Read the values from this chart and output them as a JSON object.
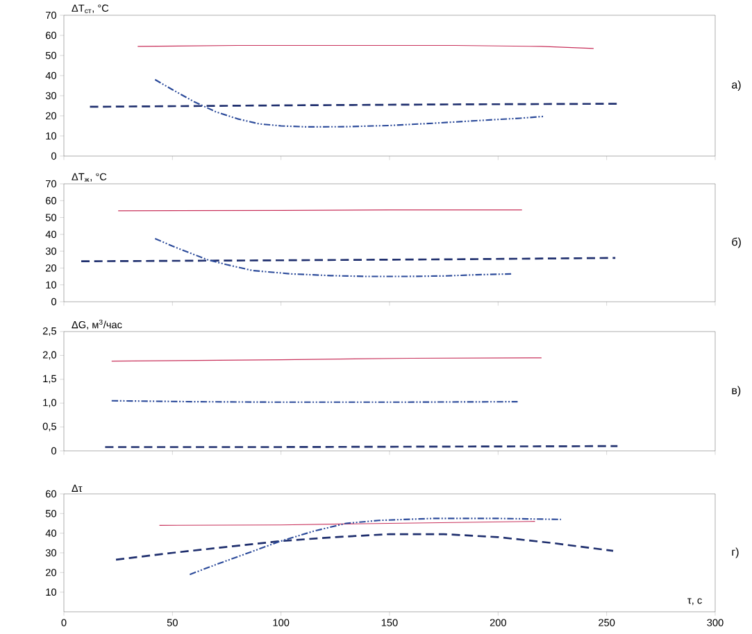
{
  "chart_data": [
    {
      "type": "line",
      "ylabel": "ΔT$_{ст}$, °C",
      "annotations": [
        "а)"
      ],
      "xlim": [
        0,
        300
      ],
      "xticks": [
        0,
        50,
        100,
        150,
        200,
        250,
        300
      ],
      "ylim": [
        0,
        70
      ],
      "yticks": [
        0,
        10,
        20,
        30,
        40,
        50,
        60,
        70
      ],
      "tick_labels": "y",
      "series": [
        {
          "color": "#c8305a",
          "line_style": "solid",
          "x": [
            34,
            80,
            130,
            180,
            220,
            244
          ],
          "values": [
            54.5,
            55,
            55,
            55,
            54.5,
            53.5
          ]
        },
        {
          "color": "#1f2f6e",
          "line_style": "dashed",
          "x": [
            12,
            100,
            180,
            255
          ],
          "values": [
            24.5,
            25.2,
            25.7,
            26
          ]
        },
        {
          "color": "#2b4a9a",
          "line_style": "dashdotdotted",
          "x": [
            42,
            50,
            60,
            70,
            80,
            90,
            100,
            112,
            130,
            150,
            170,
            190,
            210,
            221
          ],
          "values": [
            38,
            33,
            27,
            22,
            18.5,
            16,
            15,
            14.5,
            14.6,
            15.2,
            16.3,
            17.6,
            18.8,
            19.7
          ]
        }
      ]
    },
    {
      "type": "line",
      "ylabel": "ΔT$_{ж}$, °C",
      "annotations": [
        "б)"
      ],
      "xlim": [
        0,
        300
      ],
      "xticks": [
        0,
        50,
        100,
        150,
        200,
        250,
        300
      ],
      "ylim": [
        0,
        70
      ],
      "yticks": [
        0,
        10,
        20,
        30,
        40,
        50,
        60,
        70
      ],
      "tick_labels": "y",
      "series": [
        {
          "color": "#c8305a",
          "line_style": "solid",
          "x": [
            25,
            100,
            150,
            211
          ],
          "values": [
            54,
            54.2,
            54.5,
            54.5
          ]
        },
        {
          "color": "#1f2f6e",
          "line_style": "dashed",
          "x": [
            8,
            100,
            180,
            254
          ],
          "values": [
            24,
            24.6,
            25.2,
            26
          ]
        },
        {
          "color": "#2b4a9a",
          "line_style": "dashdotdotted",
          "x": [
            42,
            50,
            58,
            66,
            75,
            87,
            105,
            123,
            140,
            156,
            175,
            190,
            206
          ],
          "values": [
            37.5,
            33,
            29,
            25,
            22,
            18.5,
            16.5,
            15.5,
            15,
            15,
            15.3,
            16,
            16.5
          ]
        }
      ]
    },
    {
      "type": "line",
      "ylabel": "ΔG, м$^{3}$/час",
      "annotations": [
        "в)"
      ],
      "xlim": [
        0,
        300
      ],
      "xticks": [
        0,
        50,
        100,
        150,
        200,
        250,
        300
      ],
      "ylim": [
        0,
        2.5
      ],
      "yticks": [
        0,
        {
          "value": 0.5,
          "label": "0,5"
        },
        {
          "value": 1,
          "label": "1,0"
        },
        {
          "value": 1.5,
          "label": "1,5"
        },
        {
          "value": 2,
          "label": "2,0"
        },
        {
          "value": 2.5,
          "label": "2,5"
        }
      ],
      "tick_labels": "y",
      "series": [
        {
          "color": "#c8305a",
          "line_style": "solid",
          "x": [
            22,
            100,
            160,
            220
          ],
          "values": [
            1.88,
            1.91,
            1.94,
            1.95
          ]
        },
        {
          "color": "#2b4a9a",
          "line_style": "dashdotdotted",
          "x": [
            22,
            60,
            100,
            150,
            209
          ],
          "values": [
            1.05,
            1.03,
            1.02,
            1.02,
            1.03
          ]
        },
        {
          "color": "#1f2f6e",
          "line_style": "dashed",
          "x": [
            19,
            100,
            180,
            255
          ],
          "values": [
            0.08,
            0.08,
            0.09,
            0.1
          ]
        }
      ]
    },
    {
      "type": "line",
      "ylabel": "Δτ",
      "xlabel": "τ, с",
      "annotations": [
        "г)"
      ],
      "xlim": [
        0,
        300
      ],
      "xticks": [
        0,
        50,
        100,
        150,
        200,
        250,
        300
      ],
      "ylim": [
        0,
        60
      ],
      "yticks": [
        10,
        20,
        30,
        40,
        50,
        60
      ],
      "series": [
        {
          "color": "#c8305a",
          "line_style": "solid",
          "x": [
            44,
            100,
            150,
            217
          ],
          "values": [
            44,
            44.2,
            45,
            46
          ]
        },
        {
          "color": "#1f2f6e",
          "line_style": "dashed",
          "x": [
            24,
            50,
            75,
            100,
            125,
            150,
            175,
            200,
            225,
            253
          ],
          "values": [
            26.5,
            30,
            33,
            36,
            38,
            39.5,
            39.5,
            38,
            35,
            31
          ]
        },
        {
          "color": "#2b4a9a",
          "line_style": "dashdotdotted",
          "x": [
            58,
            70,
            85,
            100,
            115,
            130,
            145,
            170,
            200,
            229
          ],
          "values": [
            19,
            24,
            30,
            36,
            41,
            45,
            46.5,
            47.5,
            47.5,
            47
          ]
        }
      ]
    }
  ]
}
